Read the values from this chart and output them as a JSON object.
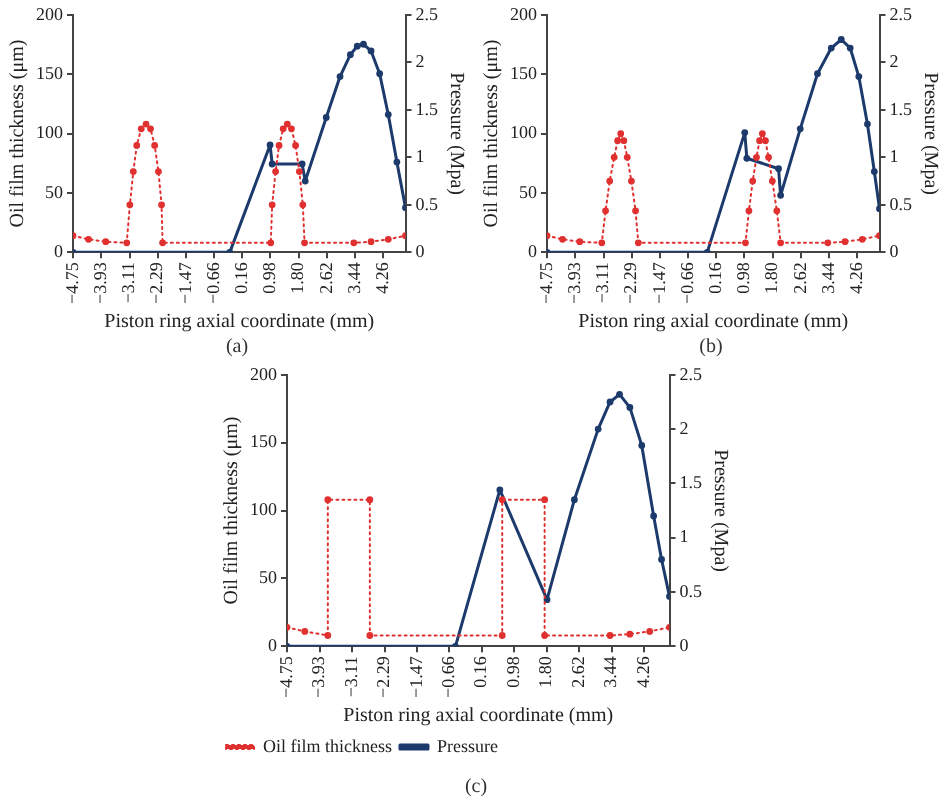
{
  "chart_data": [
    {
      "type": "line",
      "xlabel": "Piston ring axial coordinate (mm)",
      "ylabel": "Oil film thickness (μm)",
      "y2label": "Pressure (Mpa)",
      "annotations": [
        "(a)"
      ],
      "grid": false,
      "legend": false,
      "marker": "circle",
      "xlim": [
        -4.75,
        4.9
      ],
      "xticks": [
        {
          "value": -4.75,
          "label": "−4.75"
        },
        {
          "value": -3.93,
          "label": "−3.93"
        },
        {
          "value": -3.11,
          "label": "−3.11"
        },
        {
          "value": -2.29,
          "label": "−2.29"
        },
        {
          "value": -1.47,
          "label": "−1.47"
        },
        {
          "value": -0.66,
          "label": "−0.66"
        },
        0.16,
        0.98,
        {
          "value": 1.8,
          "label": "1.80"
        },
        2.62,
        3.44,
        4.26
      ],
      "ylim": [
        0,
        200
      ],
      "yticks": [
        0,
        50,
        100,
        150,
        200
      ],
      "y2lim": [
        0,
        2.5
      ],
      "y2ticks": [
        0,
        0.5,
        1,
        1.5,
        2,
        2.5
      ],
      "series": [
        {
          "color": "#e03030",
          "line_style": "dotted",
          "x": [
            -4.75,
            -4.3,
            -3.8,
            -3.19,
            -3.1,
            -3.0,
            -2.9,
            -2.77,
            -2.63,
            -2.5,
            -2.38,
            -2.27,
            -2.18,
            -2.15,
            0.99,
            1.03,
            1.13,
            1.23,
            1.35,
            1.47,
            1.59,
            1.71,
            1.82,
            1.92,
            1.97,
            3.4,
            3.9,
            4.4,
            4.9
          ],
          "values": [
            14,
            11,
            9,
            8,
            40,
            68,
            90,
            104,
            108,
            104,
            90,
            68,
            40,
            8,
            8,
            40,
            68,
            90,
            104,
            108,
            104,
            90,
            68,
            40,
            8,
            8,
            9,
            11,
            14
          ]
        },
        {
          "color": "#1c3a6b",
          "line_style": "solid",
          "axis": "y2",
          "x": [
            -4.75,
            -0.2,
            0.97,
            1.03,
            1.9,
            1.99,
            2.6,
            3.0,
            3.3,
            3.5,
            3.68,
            3.9,
            4.15,
            4.4,
            4.65,
            4.9
          ],
          "values": [
            0,
            0,
            1.13,
            0.93,
            0.93,
            0.75,
            1.42,
            1.85,
            2.08,
            2.17,
            2.19,
            2.12,
            1.88,
            1.45,
            0.95,
            0.47
          ]
        }
      ]
    },
    {
      "type": "line",
      "xlabel": "Piston ring axial coordinate (mm)",
      "ylabel": "Oil film thickness (μm)",
      "y2label": "Pressure (Mpa)",
      "annotations": [
        "(b)"
      ],
      "grid": false,
      "legend": false,
      "marker": "circle",
      "xlim": [
        -4.75,
        4.9
      ],
      "xticks": [
        {
          "value": -4.75,
          "label": "−4.75"
        },
        {
          "value": -3.93,
          "label": "−3.93"
        },
        {
          "value": -3.11,
          "label": "−3.11"
        },
        {
          "value": -2.29,
          "label": "−2.29"
        },
        {
          "value": -1.47,
          "label": "−1.47"
        },
        {
          "value": -0.66,
          "label": "−0.66"
        },
        0.16,
        0.98,
        {
          "value": 1.8,
          "label": "1.80"
        },
        2.62,
        3.44,
        4.26
      ],
      "ylim": [
        0,
        200
      ],
      "yticks": [
        0,
        50,
        100,
        150,
        200
      ],
      "y2lim": [
        0,
        2.5
      ],
      "y2ticks": [
        0,
        0.5,
        1,
        1.5,
        2,
        2.5
      ],
      "series": [
        {
          "color": "#e03030",
          "line_style": "dotted",
          "x": [
            -4.75,
            -4.3,
            -3.8,
            -3.16,
            -3.05,
            -2.93,
            -2.8,
            -2.7,
            -2.61,
            -2.52,
            -2.42,
            -2.3,
            -2.18,
            -2.1,
            1.01,
            1.11,
            1.22,
            1.33,
            1.42,
            1.5,
            1.59,
            1.68,
            1.79,
            1.92,
            2.03,
            3.4,
            3.9,
            4.4,
            4.9
          ],
          "values": [
            14,
            11,
            9,
            8,
            35,
            60,
            80,
            94,
            100,
            94,
            80,
            60,
            35,
            8,
            8,
            35,
            60,
            80,
            94,
            100,
            94,
            80,
            60,
            35,
            8,
            8,
            9,
            11,
            14
          ]
        },
        {
          "color": "#1c3a6b",
          "line_style": "solid",
          "axis": "y2",
          "x": [
            -4.75,
            -0.1,
            0.99,
            1.05,
            1.97,
            2.03,
            2.6,
            3.1,
            3.5,
            3.79,
            4.05,
            4.3,
            4.55,
            4.75,
            4.9
          ],
          "values": [
            0,
            0,
            1.26,
            0.99,
            0.88,
            0.6,
            1.3,
            1.88,
            2.15,
            2.24,
            2.15,
            1.85,
            1.35,
            0.85,
            0.46
          ]
        }
      ]
    },
    {
      "type": "line",
      "xlabel": "Piston ring axial coordinate (mm)",
      "ylabel": "Oil film thickness (μm)",
      "y2label": "Pressure (Mpa)",
      "annotations": [
        "(c)"
      ],
      "grid": false,
      "legend": "bottom",
      "marker": "circle",
      "xlim": [
        -4.75,
        4.9
      ],
      "xticks": [
        {
          "value": -4.75,
          "label": "−4.75"
        },
        {
          "value": -3.93,
          "label": "−3.93"
        },
        {
          "value": -3.11,
          "label": "−3.11"
        },
        {
          "value": -2.29,
          "label": "−2.29"
        },
        {
          "value": -1.47,
          "label": "−1.47"
        },
        {
          "value": -0.66,
          "label": "−0.66"
        },
        0.16,
        0.98,
        {
          "value": 1.8,
          "label": "1.80"
        },
        2.62,
        3.44,
        4.26
      ],
      "ylim": [
        0,
        200
      ],
      "yticks": [
        0,
        50,
        100,
        150,
        200
      ],
      "y2lim": [
        0,
        2.5
      ],
      "y2ticks": [
        0,
        0.5,
        1,
        1.5,
        2,
        2.5
      ],
      "series": [
        {
          "name": "Oil film thickness",
          "color": "#e03030",
          "line_style": "dotted",
          "x": [
            -4.75,
            -4.3,
            -3.72,
            -3.72,
            -2.66,
            -2.66,
            0.68,
            0.68,
            1.75,
            1.75,
            3.4,
            3.9,
            4.4,
            4.9
          ],
          "values": [
            14,
            11,
            8,
            108,
            108,
            8,
            8,
            108,
            108,
            8,
            8,
            9,
            11,
            14
          ]
        },
        {
          "name": "Pressure",
          "color": "#1c3a6b",
          "line_style": "solid",
          "axis": "y2",
          "x": [
            -4.75,
            -0.5,
            0.62,
            1.81,
            2.5,
            3.1,
            3.4,
            3.64,
            3.9,
            4.2,
            4.5,
            4.7,
            4.9
          ],
          "values": [
            0,
            0,
            1.44,
            0.43,
            1.35,
            2.0,
            2.25,
            2.32,
            2.2,
            1.85,
            1.2,
            0.8,
            0.46
          ]
        }
      ]
    }
  ]
}
